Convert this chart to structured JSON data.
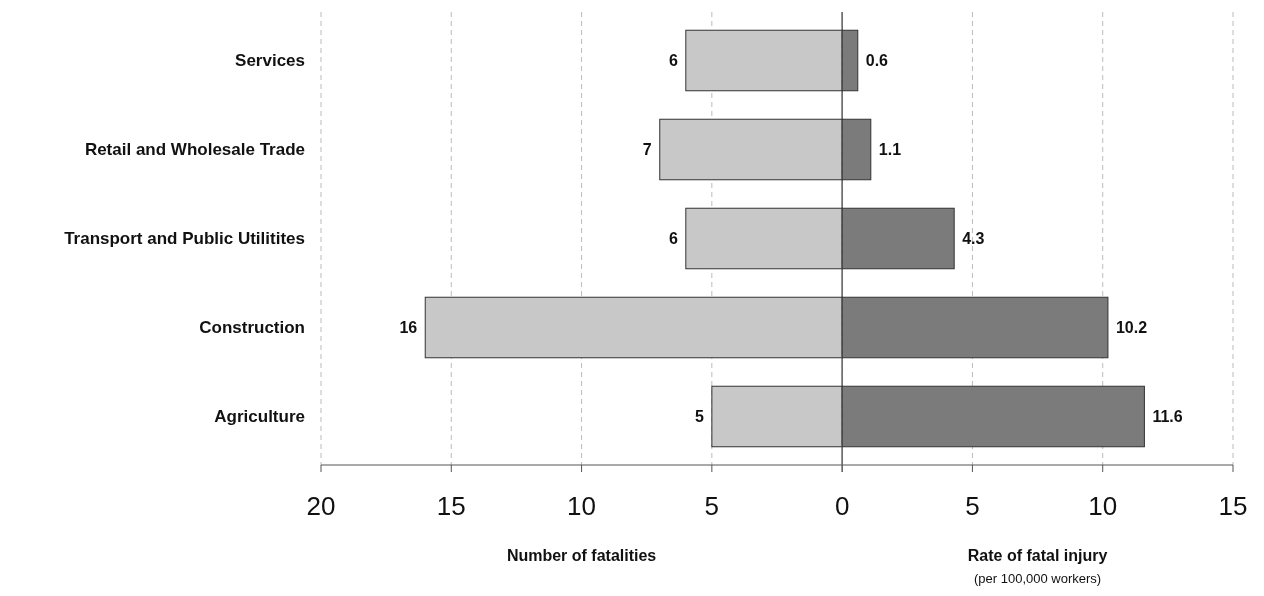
{
  "chart_data": [
    {
      "type": "bar",
      "orientation": "horizontal",
      "categories": [
        "Services",
        "Retail and Wholesale Trade",
        "Transport and Public Utilitites",
        "Construction",
        "Agriculture"
      ],
      "series": [
        {
          "color": "#c8c8c8",
          "values": [
            6,
            7,
            6,
            16,
            5
          ]
        }
      ],
      "xlim": [
        20,
        0
      ],
      "xticks": [
        20,
        15,
        10,
        5,
        0
      ],
      "xlabel": "Number of fatalities",
      "grid": "x",
      "data_labels": true
    },
    {
      "type": "bar",
      "orientation": "horizontal",
      "categories": [
        null,
        null,
        null,
        null,
        null
      ],
      "series": [
        {
          "color": "#7b7b7b",
          "values": [
            0.6,
            1.1,
            4.3,
            10.2,
            11.6
          ]
        }
      ],
      "xlim": [
        0,
        15
      ],
      "xticks": [
        {
          "value": 0,
          "label": null
        },
        5,
        10,
        15
      ],
      "xlabel": "Rate of fatal injury",
      "annotations": [
        "(per 100,000 workers)"
      ],
      "grid": "x",
      "data_labels": true,
      "tick_labels": "x"
    }
  ]
}
